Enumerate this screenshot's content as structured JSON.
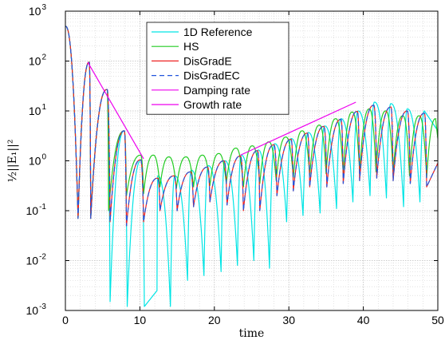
{
  "chart_data": {
    "type": "line",
    "xlabel": "time",
    "ylabel": "½||E₁||²",
    "xlim": [
      0,
      50
    ],
    "ylim": [
      0.001,
      1000
    ],
    "yscale": "log",
    "grid": true,
    "minor_grid": true,
    "legend_position": "top-center",
    "x_ticks": [
      0,
      10,
      20,
      30,
      40,
      50
    ],
    "y_ticks": [
      {
        "value": 0.001,
        "mantissa": "10",
        "exp": "-3"
      },
      {
        "value": 0.01,
        "mantissa": "10",
        "exp": "-2"
      },
      {
        "value": 0.1,
        "mantissa": "10",
        "exp": "-1"
      },
      {
        "value": 1,
        "mantissa": "10",
        "exp": "0"
      },
      {
        "value": 10,
        "mantissa": "10",
        "exp": "1"
      },
      {
        "value": 100,
        "mantissa": "10",
        "exp": "2"
      },
      {
        "value": 1000,
        "mantissa": "10",
        "exp": "3"
      }
    ],
    "series": [
      {
        "name": "1D Reference",
        "color": "#00e5e5",
        "style": "solid",
        "peaks": [
          [
            0,
            500
          ],
          [
            3.2,
            95
          ],
          [
            5.6,
            27
          ],
          [
            7.9,
            4.0
          ],
          [
            10.2,
            1.05
          ],
          [
            12.4,
            0.5
          ],
          [
            14.7,
            0.5
          ],
          [
            16.9,
            0.65
          ],
          [
            19.2,
            0.8
          ],
          [
            21.4,
            1.0
          ],
          [
            23.6,
            1.3
          ],
          [
            25.9,
            1.65
          ],
          [
            28.1,
            2.2
          ],
          [
            30.3,
            2.8
          ],
          [
            32.6,
            3.7
          ],
          [
            34.8,
            5.0
          ],
          [
            37.0,
            7.0
          ],
          [
            39.3,
            10.0
          ],
          [
            41.5,
            15.0
          ],
          [
            43.7,
            14.0
          ],
          [
            45.9,
            11.0
          ],
          [
            48.2,
            10.0
          ]
        ],
        "troughs": [
          [
            1.7,
            0.07
          ],
          [
            3.4,
            0.07
          ],
          [
            6.0,
            0.0015
          ],
          [
            8.3,
            0.0012
          ],
          [
            10.6,
            0.0012
          ],
          [
            12.3,
            0.0025
          ],
          [
            14.1,
            0.0012
          ],
          [
            16.4,
            0.004
          ],
          [
            18.6,
            0.005
          ],
          [
            20.9,
            0.006
          ],
          [
            23.1,
            0.008
          ],
          [
            25.3,
            0.01
          ],
          [
            27.4,
            0.007
          ],
          [
            29.7,
            0.06
          ],
          [
            31.9,
            0.08
          ],
          [
            34.2,
            0.09
          ],
          [
            36.4,
            0.11
          ],
          [
            38.6,
            0.15
          ],
          [
            40.9,
            0.2
          ],
          [
            43.1,
            0.18
          ],
          [
            45.4,
            0.12
          ],
          [
            47.6,
            0.15
          ]
        ]
      },
      {
        "name": "HS",
        "color": "#22cc22",
        "style": "solid",
        "peaks": [
          [
            0,
            500
          ],
          [
            3.2,
            95
          ],
          [
            5.6,
            27
          ],
          [
            7.9,
            4.0
          ],
          [
            10.1,
            1.3
          ],
          [
            11.8,
            1.3
          ],
          [
            13.9,
            1.2
          ],
          [
            16.2,
            1.2
          ],
          [
            18.4,
            1.3
          ],
          [
            20.6,
            1.4
          ],
          [
            22.9,
            1.8
          ],
          [
            25.1,
            2.0
          ],
          [
            27.3,
            2.4
          ],
          [
            29.6,
            3.0
          ],
          [
            31.8,
            4.0
          ],
          [
            34.1,
            5.2
          ],
          [
            36.3,
            7.0
          ],
          [
            38.5,
            9.5
          ],
          [
            40.8,
            11.0
          ],
          [
            43.0,
            10.0
          ],
          [
            45.3,
            8.0
          ],
          [
            47.5,
            8.0
          ],
          [
            49.7,
            7.0
          ]
        ],
        "troughs": [
          [
            1.7,
            0.07
          ],
          [
            3.4,
            0.07
          ],
          [
            5.8,
            0.1
          ],
          [
            8.2,
            0.2
          ],
          [
            10.5,
            0.22
          ],
          [
            12.7,
            0.3
          ],
          [
            14.9,
            0.28
          ],
          [
            17.2,
            0.3
          ],
          [
            19.4,
            0.32
          ],
          [
            21.6,
            0.35
          ],
          [
            23.9,
            0.3
          ],
          [
            26.1,
            0.35
          ],
          [
            28.3,
            0.4
          ],
          [
            30.6,
            0.45
          ],
          [
            32.8,
            0.5
          ],
          [
            35.0,
            0.55
          ],
          [
            37.3,
            0.55
          ],
          [
            39.5,
            0.6
          ],
          [
            41.7,
            0.6
          ],
          [
            44.0,
            0.55
          ],
          [
            46.2,
            0.5
          ],
          [
            48.5,
            0.45
          ]
        ]
      },
      {
        "name": "DisGradE",
        "color": "#ee2222",
        "style": "solid",
        "peaks": [
          [
            0,
            500
          ],
          [
            3.2,
            95
          ],
          [
            5.6,
            27
          ],
          [
            7.9,
            4.0
          ],
          [
            10.1,
            1.05
          ],
          [
            12.4,
            0.45
          ],
          [
            14.6,
            0.5
          ],
          [
            16.8,
            0.6
          ],
          [
            19.1,
            0.75
          ],
          [
            21.3,
            1.0
          ],
          [
            23.5,
            1.25
          ],
          [
            25.8,
            1.6
          ],
          [
            28.0,
            2.1
          ],
          [
            30.3,
            2.7
          ],
          [
            32.5,
            3.6
          ],
          [
            34.7,
            4.9
          ],
          [
            37.0,
            6.8
          ],
          [
            39.2,
            9.8
          ],
          [
            41.4,
            13.0
          ],
          [
            43.7,
            12.0
          ],
          [
            45.9,
            10.0
          ],
          [
            48.2,
            9.0
          ]
        ],
        "troughs": [
          [
            1.7,
            0.07
          ],
          [
            3.4,
            0.07
          ],
          [
            6.0,
            0.06
          ],
          [
            8.2,
            0.05
          ],
          [
            10.5,
            0.06
          ],
          [
            12.7,
            0.1
          ],
          [
            15.0,
            0.1
          ],
          [
            17.2,
            0.12
          ],
          [
            19.4,
            0.15
          ],
          [
            21.7,
            0.13
          ],
          [
            23.9,
            0.1
          ],
          [
            26.1,
            0.1
          ],
          [
            28.4,
            0.2
          ],
          [
            30.6,
            0.25
          ],
          [
            32.8,
            0.3
          ],
          [
            35.1,
            0.3
          ],
          [
            37.3,
            0.35
          ],
          [
            39.5,
            0.4
          ],
          [
            41.8,
            0.45
          ],
          [
            44.0,
            0.4
          ],
          [
            46.3,
            0.35
          ],
          [
            48.5,
            0.3
          ]
        ]
      },
      {
        "name": "DisGradEC",
        "color": "#2255dd",
        "style": "dashed",
        "peaks": [
          [
            0,
            500
          ],
          [
            3.2,
            95
          ],
          [
            5.6,
            27
          ],
          [
            7.9,
            4.0
          ],
          [
            10.1,
            1.05
          ],
          [
            12.4,
            0.45
          ],
          [
            14.6,
            0.5
          ],
          [
            16.8,
            0.6
          ],
          [
            19.1,
            0.75
          ],
          [
            21.3,
            1.0
          ],
          [
            23.5,
            1.25
          ],
          [
            25.8,
            1.6
          ],
          [
            28.0,
            2.1
          ],
          [
            30.3,
            2.7
          ],
          [
            32.5,
            3.6
          ],
          [
            34.7,
            4.9
          ],
          [
            37.0,
            6.8
          ],
          [
            39.2,
            9.8
          ],
          [
            41.4,
            13.0
          ],
          [
            43.7,
            12.0
          ],
          [
            45.9,
            10.0
          ],
          [
            48.2,
            9.0
          ]
        ],
        "troughs": [
          [
            1.7,
            0.07
          ],
          [
            3.4,
            0.07
          ],
          [
            6.0,
            0.06
          ],
          [
            8.2,
            0.05
          ],
          [
            10.5,
            0.06
          ],
          [
            12.7,
            0.1
          ],
          [
            15.0,
            0.1
          ],
          [
            17.2,
            0.12
          ],
          [
            19.4,
            0.15
          ],
          [
            21.7,
            0.13
          ],
          [
            23.9,
            0.1
          ],
          [
            26.1,
            0.1
          ],
          [
            28.4,
            0.2
          ],
          [
            30.6,
            0.25
          ],
          [
            32.8,
            0.3
          ],
          [
            35.1,
            0.3
          ],
          [
            37.3,
            0.35
          ],
          [
            39.5,
            0.4
          ],
          [
            41.8,
            0.45
          ],
          [
            44.0,
            0.4
          ],
          [
            46.3,
            0.35
          ],
          [
            48.5,
            0.3
          ]
        ]
      },
      {
        "name": "Damping rate",
        "color": "#ee00ee",
        "style": "solid",
        "points": [
          [
            3.0,
            95
          ],
          [
            10.5,
            1.1
          ]
        ]
      },
      {
        "name": "Growth rate",
        "color": "#ee00ee",
        "style": "solid",
        "points": [
          [
            23.5,
            1.3
          ],
          [
            39.0,
            15
          ]
        ]
      }
    ]
  }
}
